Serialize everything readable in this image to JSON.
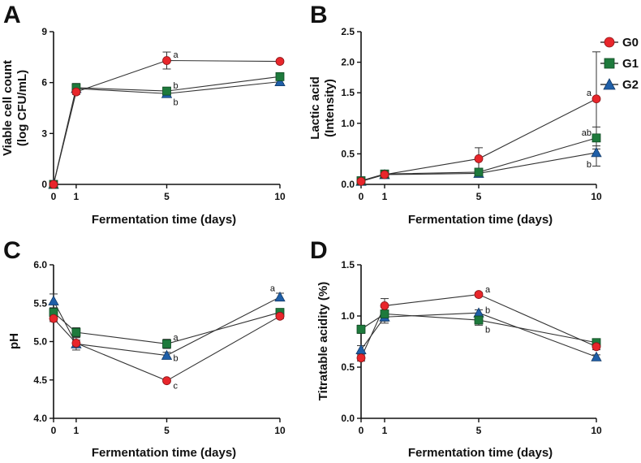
{
  "colors": {
    "G0": "#e8262b",
    "G1": "#1e7a3c",
    "G2": "#1f5fa8",
    "axis": "#111111",
    "line": "#333333"
  },
  "legend": {
    "entries": [
      {
        "name": "G0",
        "marker": "circle"
      },
      {
        "name": "G1",
        "marker": "square"
      },
      {
        "name": "G2",
        "marker": "triangle"
      }
    ]
  },
  "chart_data": [
    {
      "panel": "A",
      "type": "line",
      "title": "",
      "xlabel": "Fermentation time (days)",
      "ylabel": [
        "Viable cell count",
        "(log CFU/mL)"
      ],
      "x": [
        0,
        1,
        5,
        10
      ],
      "xticks": [
        "0",
        "1",
        "5",
        "10"
      ],
      "xlim": [
        0,
        10
      ],
      "ylim": [
        0,
        9
      ],
      "yticks": [
        0,
        3,
        6,
        9
      ],
      "yticklabels": [
        "0",
        "3",
        "6",
        "9"
      ],
      "series": [
        {
          "name": "G0",
          "values": [
            0,
            5.45,
            7.3,
            7.25
          ],
          "errors": [
            0,
            0.15,
            0.5,
            0.1
          ]
        },
        {
          "name": "G1",
          "values": [
            0,
            5.7,
            5.5,
            6.35
          ],
          "errors": [
            0,
            0.25,
            0.2,
            0.1
          ]
        },
        {
          "name": "G2",
          "values": [
            0,
            5.65,
            5.35,
            6.05
          ],
          "errors": [
            0,
            0.2,
            0.15,
            0.1
          ]
        }
      ],
      "annotations": [
        {
          "text": "a",
          "x": 5,
          "y": 7.65
        },
        {
          "text": "b",
          "x": 5,
          "y": 5.85
        },
        {
          "text": "b",
          "x": 5,
          "y": 4.85
        }
      ]
    },
    {
      "panel": "B",
      "type": "line",
      "title": "",
      "xlabel": "Fermentation time (days)",
      "ylabel": [
        "Lactic acid",
        "(Intensity)"
      ],
      "x": [
        0,
        1,
        5,
        10
      ],
      "xticks": [
        "0",
        "1",
        "5",
        "10"
      ],
      "xlim": [
        0,
        10
      ],
      "ylim": [
        0,
        2.5
      ],
      "yticks": [
        0,
        0.5,
        1.0,
        1.5,
        2.0,
        2.5
      ],
      "yticklabels": [
        "0.0",
        "0.5",
        "1.0",
        "1.5",
        "2.0",
        "2.5"
      ],
      "series": [
        {
          "name": "G0",
          "values": [
            0.05,
            0.16,
            0.42,
            1.4
          ],
          "errors": [
            0.02,
            0.04,
            0.18,
            0.77
          ]
        },
        {
          "name": "G1",
          "values": [
            0.06,
            0.17,
            0.2,
            0.76
          ],
          "errors": [
            0.02,
            0.05,
            0.05,
            0.18
          ]
        },
        {
          "name": "G2",
          "values": [
            0.05,
            0.16,
            0.18,
            0.52
          ],
          "errors": [
            0.02,
            0.05,
            0.04,
            0.22
          ]
        }
      ],
      "annotations": [
        {
          "text": "a",
          "x": 10,
          "y": 1.5
        },
        {
          "text": "ab",
          "x": 10,
          "y": 0.85
        },
        {
          "text": "b",
          "x": 10,
          "y": 0.33
        }
      ]
    },
    {
      "panel": "C",
      "type": "line",
      "title": "",
      "xlabel": "Fermentation time (days)",
      "ylabel": [
        "pH"
      ],
      "x": [
        0,
        1,
        5,
        10
      ],
      "xticks": [
        "0",
        "1",
        "5",
        "10"
      ],
      "xlim": [
        0,
        10
      ],
      "ylim": [
        4.0,
        6.0
      ],
      "yticks": [
        4.0,
        4.5,
        5.0,
        5.5,
        6.0
      ],
      "yticklabels": [
        "4.0",
        "4.5",
        "5.0",
        "5.5",
        "6.0"
      ],
      "series": [
        {
          "name": "G0",
          "values": [
            5.3,
            4.98,
            4.49,
            5.33
          ],
          "errors": [
            0.04,
            0.04,
            0.02,
            0.03
          ]
        },
        {
          "name": "G1",
          "values": [
            5.38,
            5.12,
            4.97,
            5.38
          ],
          "errors": [
            0.06,
            0.06,
            0.06,
            0.04
          ]
        },
        {
          "name": "G2",
          "values": [
            5.53,
            4.97,
            4.82,
            5.58
          ],
          "errors": [
            0.09,
            0.08,
            0.04,
            0.05
          ]
        }
      ],
      "annotations": [
        {
          "text": "a",
          "x": 5,
          "y": 5.06
        },
        {
          "text": "b",
          "x": 5,
          "y": 4.79
        },
        {
          "text": "c",
          "x": 5,
          "y": 4.43
        },
        {
          "text": "a",
          "x": 10,
          "y": 5.7
        }
      ]
    },
    {
      "panel": "D",
      "type": "line",
      "title": "",
      "xlabel": "Fermentation time (days)",
      "ylabel": [
        "Titratable acidity (%)"
      ],
      "x": [
        0,
        1,
        5,
        10
      ],
      "xticks": [
        "0",
        "1",
        "5",
        "10"
      ],
      "xlim": [
        0,
        10
      ],
      "ylim": [
        0,
        1.5
      ],
      "yticks": [
        0,
        0.5,
        1.0,
        1.5
      ],
      "yticklabels": [
        "0.0",
        "0.5",
        "1.0",
        "1.5"
      ],
      "series": [
        {
          "name": "G0",
          "values": [
            0.59,
            1.1,
            1.21,
            0.7
          ],
          "errors": [
            0.03,
            0.07,
            0.02,
            0.03
          ]
        },
        {
          "name": "G1",
          "values": [
            0.87,
            1.02,
            0.96,
            0.74
          ],
          "errors": [
            0.04,
            0.07,
            0.05,
            0.03
          ]
        },
        {
          "name": "G2",
          "values": [
            0.67,
            0.99,
            1.03,
            0.6
          ],
          "errors": [
            0.04,
            0.06,
            0.03,
            0.02
          ]
        }
      ],
      "annotations": [
        {
          "text": "a",
          "x": 5,
          "y": 1.26
        },
        {
          "text": "b",
          "x": 5,
          "y": 1.06
        },
        {
          "text": "b",
          "x": 5,
          "y": 0.87
        }
      ]
    }
  ]
}
